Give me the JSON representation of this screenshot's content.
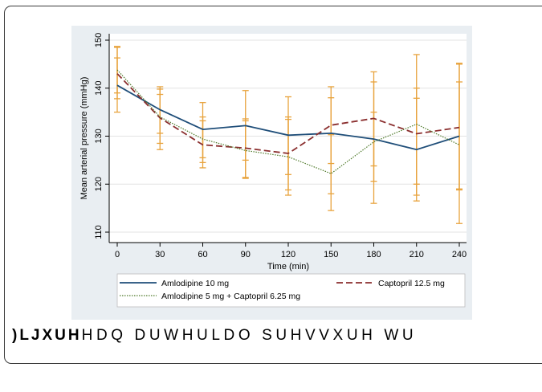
{
  "caption": {
    "lead": ")LJXUH",
    "rest": "HDQ DUWHULDO SUHVVXUH WU"
  },
  "chart_data": {
    "type": "line",
    "xlabel": "Time (min)",
    "ylabel": "Mean arterial pressure (mmHg)",
    "x": [
      0,
      30,
      60,
      90,
      120,
      150,
      180,
      210,
      240
    ],
    "x_ticks": [
      "0",
      "30",
      "60",
      "90",
      "120",
      "150",
      "180",
      "210",
      "240"
    ],
    "y_ticks": [
      "110",
      "120",
      "130",
      "140",
      "150"
    ],
    "xlim": [
      0,
      240
    ],
    "ylim": [
      110,
      150
    ],
    "grid": "horizontal",
    "legend_position": "bottom",
    "error_bar_color": "#e8a33d",
    "series": [
      {
        "name": "Amlodipine 10 mg",
        "color": "#1f4e79",
        "dash": "solid",
        "values": [
          140.6,
          135.5,
          131.4,
          132.2,
          130.2,
          130.6,
          129.4,
          127.2,
          130.0
        ],
        "err_low": [
          135.0,
          130.6,
          125.5,
          125.0,
          122.0,
          118.0,
          123.8,
          117.7,
          119.0
        ],
        "err_high": [
          148.5,
          139.8,
          137.0,
          139.5,
          138.2,
          138.0,
          135.0,
          137.9,
          141.3
        ]
      },
      {
        "name": "Captopril 12.5 mg",
        "color": "#8b2f2f",
        "dash": "dashed",
        "values": [
          143.0,
          133.8,
          128.2,
          127.5,
          126.4,
          132.3,
          133.7,
          130.5,
          131.8
        ],
        "err_low": [
          137.8,
          127.2,
          123.4,
          121.2,
          117.7,
          124.3,
          120.6,
          120.0,
          111.8
        ],
        "err_high": [
          148.7,
          140.3,
          134.0,
          133.6,
          134.0,
          140.3,
          143.4,
          147.0,
          145.2
        ]
      },
      {
        "name": "Amlodipine 5 mg + Captopril 6.25 mg",
        "color": "#4f7a2a",
        "dash": "dotted",
        "values": [
          143.8,
          134.0,
          129.4,
          127.0,
          125.7,
          122.2,
          128.8,
          132.5,
          128.2
        ],
        "err_low": [
          139.0,
          128.5,
          124.5,
          121.4,
          118.8,
          114.5,
          116.0,
          116.5,
          118.8
        ],
        "err_high": [
          146.3,
          138.7,
          133.2,
          133.2,
          133.5,
          130.3,
          141.3,
          140.0,
          145.0
        ]
      }
    ]
  }
}
